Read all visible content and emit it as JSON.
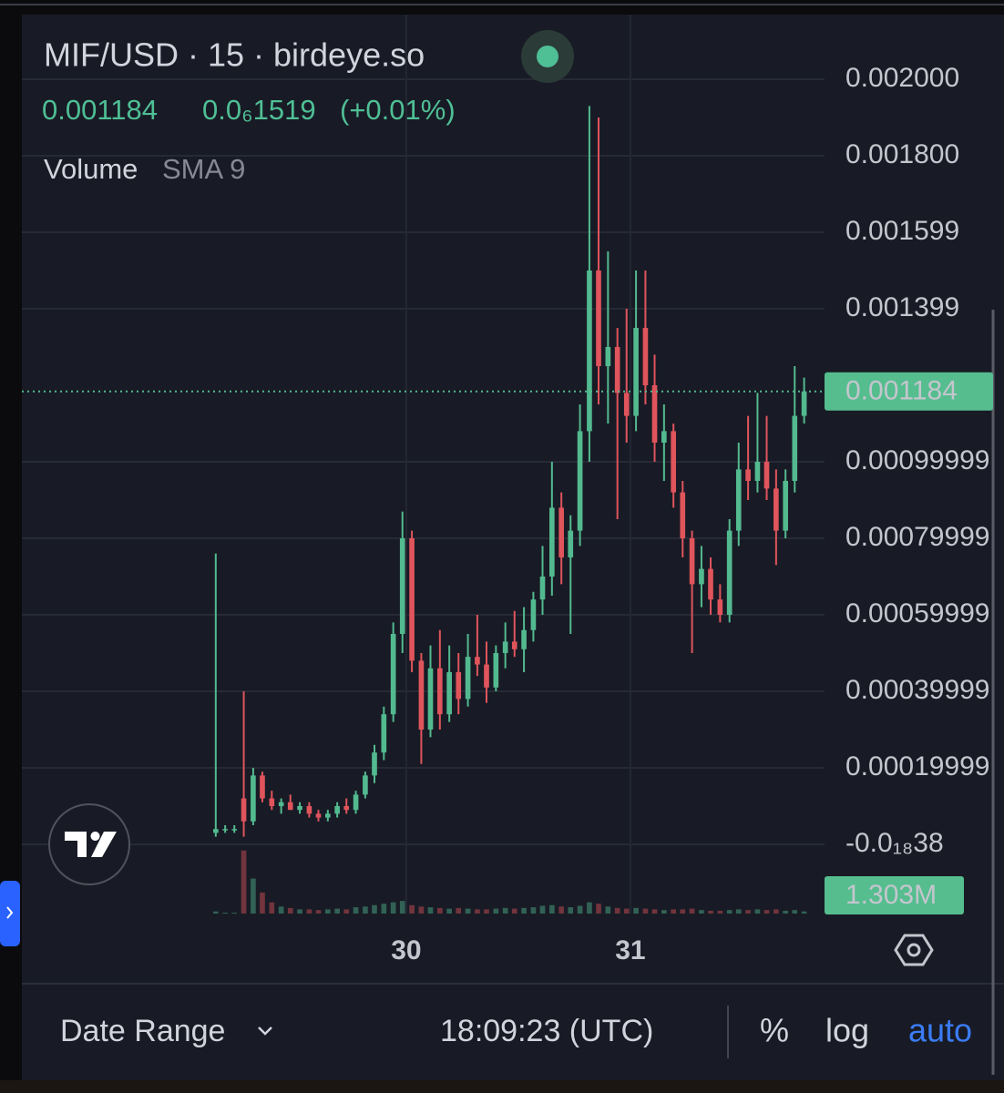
{
  "chart_data": {
    "type": "candlestick",
    "title": "MIF/USD · 15 · birdeye.so",
    "header": {
      "change": "0.0₆1519",
      "change_pct": "(+0.01%)",
      "indicator": "Volume",
      "indicator_param": "SMA 9"
    },
    "up_color": "#53ba90",
    "down_color": "#e0545c",
    "grid": true,
    "xlim": [
      28.285,
      31.866
    ],
    "xticks": [
      30,
      31
    ],
    "ylim": [
      -0.000181,
      0.002169
    ],
    "yticks": [
      {
        "value": 0,
        "label": "-0.0₁₈38"
      },
      {
        "value": 0.0002,
        "label": "0.00019999"
      },
      {
        "value": 0.0004,
        "label": "0.00039999"
      },
      {
        "value": 0.0006,
        "label": "0.00059999"
      },
      {
        "value": 0.0008,
        "label": "0.00079999"
      },
      {
        "value": 0.001,
        "label": "0.00099999"
      },
      {
        "value": 0.0014,
        "label": "0.001399"
      },
      {
        "value": 0.0016,
        "label": "0.001599"
      },
      {
        "value": 0.0018,
        "label": "0.001800"
      },
      {
        "value": 0.002,
        "label": "0.002000"
      }
    ],
    "last_price": 0.001184,
    "x": [
      29.15,
      29.192,
      29.233,
      29.275,
      29.317,
      29.358,
      29.4,
      29.442,
      29.483,
      29.525,
      29.567,
      29.608,
      29.65,
      29.692,
      29.733,
      29.775,
      29.817,
      29.858,
      29.9,
      29.942,
      29.983,
      30.025,
      30.067,
      30.108,
      30.15,
      30.192,
      30.233,
      30.275,
      30.317,
      30.358,
      30.4,
      30.442,
      30.483,
      30.525,
      30.567,
      30.608,
      30.65,
      30.692,
      30.733,
      30.775,
      30.817,
      30.858,
      30.9,
      30.942,
      30.983,
      31.025,
      31.067,
      31.108,
      31.15,
      31.192,
      31.233,
      31.275,
      31.317,
      31.358,
      31.4,
      31.442,
      31.483,
      31.525,
      31.567,
      31.608,
      31.65,
      31.692,
      31.733,
      31.775
    ],
    "candles": {
      "open": [
        3e-05,
        4e-05,
        4e-05,
        0.00012,
        6e-05,
        0.00018,
        0.00012,
        0.0001,
        0.00011,
        9e-05,
        0.0001,
        8e-05,
        7e-05,
        8e-05,
        0.0001,
        9e-05,
        0.00013,
        0.00018,
        0.00024,
        0.00034,
        0.00055,
        0.0008,
        0.00048,
        0.0003,
        0.00046,
        0.00034,
        0.00045,
        0.00038,
        0.00049,
        0.00047,
        0.00041,
        0.0005,
        0.00053,
        0.00051,
        0.00056,
        0.00064,
        0.0007,
        0.00088,
        0.00075,
        0.00082,
        0.00108,
        0.0015,
        0.00125,
        0.0013,
        0.00118,
        0.00112,
        0.00135,
        0.0012,
        0.00105,
        0.00108,
        0.00092,
        0.0008,
        0.00068,
        0.00072,
        0.00064,
        0.0006,
        0.00082,
        0.00098,
        0.00095,
        0.001,
        0.00093,
        0.00082,
        0.00095,
        0.00112
      ],
      "high": [
        0.00076,
        5e-05,
        5e-05,
        0.0004,
        0.0002,
        0.00019,
        0.00014,
        0.00012,
        0.00013,
        0.00011,
        0.00011,
        9e-05,
        9e-05,
        0.00011,
        0.00012,
        0.00014,
        0.00019,
        0.00026,
        0.00036,
        0.00058,
        0.00087,
        0.00082,
        0.0005,
        0.00052,
        0.00056,
        0.00052,
        0.0005,
        0.00055,
        0.0006,
        0.00053,
        0.00052,
        0.00058,
        0.00061,
        0.00062,
        0.00066,
        0.00078,
        0.001,
        0.00092,
        0.00086,
        0.00115,
        0.00193,
        0.0019,
        0.00155,
        0.00135,
        0.0014,
        0.0015,
        0.0015,
        0.00128,
        0.00115,
        0.0011,
        0.00095,
        0.00082,
        0.00078,
        0.00075,
        0.00068,
        0.00085,
        0.00105,
        0.00112,
        0.00118,
        0.00112,
        0.00098,
        0.00098,
        0.00125,
        0.00122
      ],
      "low": [
        2e-05,
        3e-05,
        3e-05,
        2e-05,
        5e-05,
        0.00011,
        9e-05,
        8e-05,
        9e-05,
        8e-05,
        7e-05,
        6e-05,
        6e-05,
        7e-05,
        8e-05,
        8e-05,
        0.00012,
        0.00016,
        0.00022,
        0.00032,
        0.0005,
        0.00045,
        0.00021,
        0.00028,
        0.0003,
        0.00032,
        0.00034,
        0.00036,
        0.00044,
        0.00037,
        0.0004,
        0.00046,
        0.00049,
        0.00045,
        0.00053,
        0.0006,
        0.00065,
        0.00068,
        0.00055,
        0.00078,
        0.001,
        0.00115,
        0.0011,
        0.00085,
        0.00105,
        0.00108,
        0.00115,
        0.001,
        0.00095,
        0.00088,
        0.00075,
        0.0005,
        0.00062,
        0.0006,
        0.00058,
        0.00058,
        0.00078,
        0.0009,
        0.00092,
        0.0009,
        0.00073,
        0.0008,
        0.00092,
        0.0011
      ],
      "close": [
        4e-05,
        4e-05,
        4e-05,
        6e-05,
        0.00018,
        0.00012,
        0.0001,
        0.00011,
        9e-05,
        0.0001,
        8e-05,
        7e-05,
        8e-05,
        0.0001,
        9e-05,
        0.00013,
        0.00018,
        0.00024,
        0.00034,
        0.00055,
        0.0008,
        0.00048,
        0.0003,
        0.00046,
        0.00034,
        0.00045,
        0.00038,
        0.00049,
        0.00047,
        0.00041,
        0.0005,
        0.00053,
        0.00051,
        0.00056,
        0.00064,
        0.0007,
        0.00088,
        0.00075,
        0.00082,
        0.00108,
        0.0015,
        0.00125,
        0.0013,
        0.00118,
        0.00112,
        0.00135,
        0.0012,
        0.00105,
        0.00108,
        0.00092,
        0.0008,
        0.00068,
        0.00072,
        0.00064,
        0.0006,
        0.00082,
        0.00098,
        0.00095,
        0.001,
        0.00093,
        0.00082,
        0.00095,
        0.00112,
        0.001184
      ]
    },
    "volume": [
      150000,
      60000,
      60000,
      4500000,
      2500000,
      1500000,
      800000,
      500000,
      400000,
      300000,
      300000,
      250000,
      300000,
      350000,
      300000,
      450000,
      500000,
      600000,
      700000,
      800000,
      900000,
      600000,
      500000,
      450000,
      400000,
      350000,
      400000,
      350000,
      300000,
      300000,
      350000,
      400000,
      350000,
      400000,
      450000,
      550000,
      600000,
      500000,
      450000,
      550000,
      800000,
      700000,
      500000,
      400000,
      350000,
      400000,
      350000,
      300000,
      250000,
      300000,
      300000,
      350000,
      250000,
      200000,
      200000,
      250000,
      300000,
      250000,
      300000,
      250000,
      300000,
      200000,
      250000,
      150000
    ],
    "volume_ylim": [
      0,
      5200000
    ],
    "volume_ticks": [
      {
        "value": 1303000,
        "label": "1.303M"
      }
    ]
  },
  "toolbar": {
    "date_range": "Date Range",
    "time": "18:09:23 (UTC)",
    "percent": "%",
    "log": "log",
    "auto": "auto"
  }
}
